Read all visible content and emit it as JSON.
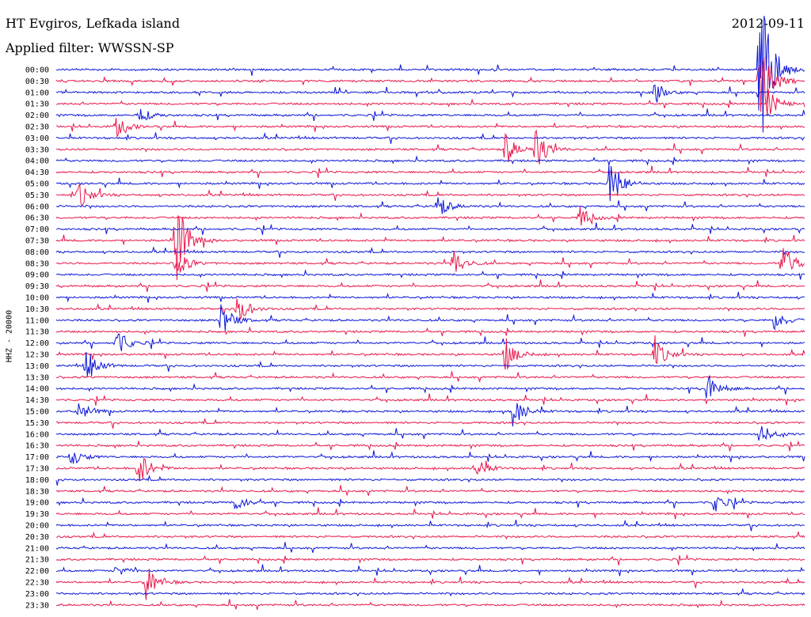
{
  "header": {
    "station": "HT Evgiros, Lefkada island",
    "date": "2012-09-11",
    "filter_label": "Applied filter: WWSSN-SP",
    "channel": "HHZ - 20000"
  },
  "colors": {
    "odd_trace": "#0a14d8",
    "even_trace": "#e8164a",
    "background": "#ffffff"
  },
  "chart_data": {
    "type": "line",
    "title": "HT Evgiros, Lefkada island",
    "subtitle": "Applied filter: WWSSN-SP",
    "ylabel": "HHZ - 20000",
    "categories": [
      "00:00",
      "00:30",
      "01:00",
      "01:30",
      "02:00",
      "02:30",
      "03:00",
      "03:30",
      "04:00",
      "04:30",
      "05:00",
      "05:30",
      "06:00",
      "06:30",
      "07:00",
      "07:30",
      "08:00",
      "08:30",
      "09:00",
      "09:30",
      "10:00",
      "10:30",
      "11:00",
      "11:30",
      "12:00",
      "12:30",
      "13:00",
      "13:30",
      "14:00",
      "14:30",
      "15:00",
      "15:30",
      "16:00",
      "16:30",
      "17:00",
      "17:30",
      "18:00",
      "18:30",
      "19:00",
      "19:30",
      "20:00",
      "20:30",
      "21:00",
      "21:30",
      "22:00",
      "22:30",
      "23:00",
      "23:30"
    ],
    "series_colors": [
      "blue",
      "red"
    ],
    "grid": false,
    "events": [
      {
        "row": 0,
        "at": 0.94,
        "amp": 140
      },
      {
        "row": 1,
        "at": 0.94,
        "amp": 60
      },
      {
        "row": 2,
        "at": 0.8,
        "amp": 10
      },
      {
        "row": 3,
        "at": 0.95,
        "amp": 20
      },
      {
        "row": 4,
        "at": 0.11,
        "amp": 12
      },
      {
        "row": 5,
        "at": 0.08,
        "amp": 14
      },
      {
        "row": 7,
        "at": 0.6,
        "amp": 22
      },
      {
        "row": 7,
        "at": 0.64,
        "amp": 30
      },
      {
        "row": 10,
        "at": 0.74,
        "amp": 40
      },
      {
        "row": 11,
        "at": 0.03,
        "amp": 18
      },
      {
        "row": 12,
        "at": 0.51,
        "amp": 16
      },
      {
        "row": 13,
        "at": 0.7,
        "amp": 14
      },
      {
        "row": 15,
        "at": 0.16,
        "amp": 60
      },
      {
        "row": 17,
        "at": 0.16,
        "amp": 20
      },
      {
        "row": 17,
        "at": 0.53,
        "amp": 20
      },
      {
        "row": 17,
        "at": 0.97,
        "amp": 30
      },
      {
        "row": 21,
        "at": 0.24,
        "amp": 25
      },
      {
        "row": 22,
        "at": 0.22,
        "amp": 25
      },
      {
        "row": 22,
        "at": 0.96,
        "amp": 14
      },
      {
        "row": 24,
        "at": 0.08,
        "amp": 20
      },
      {
        "row": 25,
        "at": 0.6,
        "amp": 22
      },
      {
        "row": 25,
        "at": 0.8,
        "amp": 20
      },
      {
        "row": 26,
        "at": 0.04,
        "amp": 22
      },
      {
        "row": 28,
        "at": 0.87,
        "amp": 22
      },
      {
        "row": 30,
        "at": 0.03,
        "amp": 14
      },
      {
        "row": 30,
        "at": 0.61,
        "amp": 22
      },
      {
        "row": 32,
        "at": 0.94,
        "amp": 14
      },
      {
        "row": 34,
        "at": 0.02,
        "amp": 12
      },
      {
        "row": 35,
        "at": 0.11,
        "amp": 25
      },
      {
        "row": 35,
        "at": 0.56,
        "amp": 15
      },
      {
        "row": 38,
        "at": 0.24,
        "amp": 12
      },
      {
        "row": 38,
        "at": 0.88,
        "amp": 14
      },
      {
        "row": 44,
        "at": 0.08,
        "amp": 8
      },
      {
        "row": 45,
        "at": 0.12,
        "amp": 26
      }
    ]
  }
}
